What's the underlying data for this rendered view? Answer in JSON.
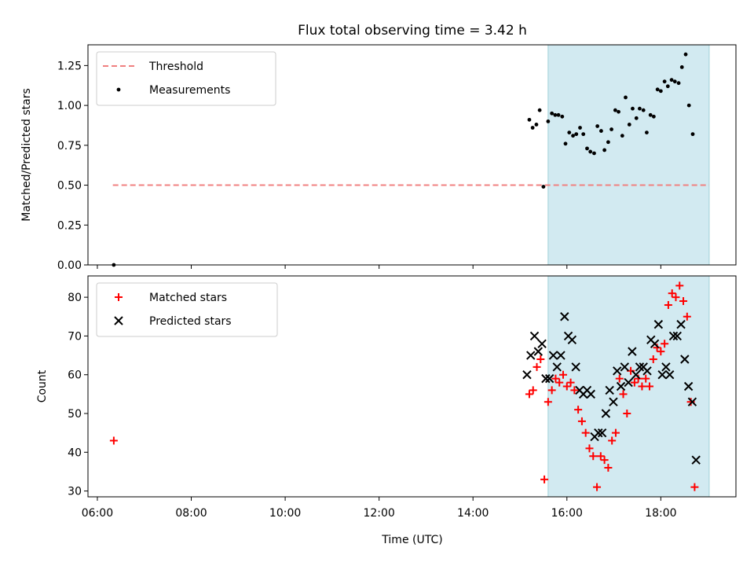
{
  "title": "Flux total observing time = 3.42 h",
  "xlabel": "Time (UTC)",
  "x_ticks": [
    "06:00",
    "08:00",
    "10:00",
    "12:00",
    "14:00",
    "16:00",
    "18:00"
  ],
  "x_range_hours": [
    5.8,
    19.6
  ],
  "shaded_window_hours": [
    15.6,
    19.03
  ],
  "colors": {
    "threshold": "#f08080",
    "shade": "#add8e6",
    "matched": "#ff0000",
    "predicted": "#000000",
    "measure": "#000000"
  },
  "chart_data": [
    {
      "type": "scatter",
      "title": "Flux total observing time = 3.42 h",
      "ylabel": "Matched/Predicted stars",
      "ylim": [
        0,
        1.38
      ],
      "y_ticks": [
        "0.00",
        "0.25",
        "0.50",
        "0.75",
        "1.00",
        "1.25"
      ],
      "legend_placement": "top-left",
      "threshold": {
        "name": "Threshold",
        "value": 0.5,
        "x_range_hours": [
          6.33,
          19.03
        ]
      },
      "series": [
        {
          "name": "Measurements",
          "points": [
            [
              6.35,
              0.0
            ],
            [
              15.2,
              0.91
            ],
            [
              15.27,
              0.86
            ],
            [
              15.35,
              0.88
            ],
            [
              15.42,
              0.97
            ],
            [
              15.5,
              0.49
            ],
            [
              15.6,
              0.9
            ],
            [
              15.68,
              0.95
            ],
            [
              15.75,
              0.94
            ],
            [
              15.82,
              0.94
            ],
            [
              15.9,
              0.93
            ],
            [
              15.97,
              0.76
            ],
            [
              16.05,
              0.83
            ],
            [
              16.13,
              0.81
            ],
            [
              16.2,
              0.82
            ],
            [
              16.28,
              0.86
            ],
            [
              16.35,
              0.82
            ],
            [
              16.43,
              0.73
            ],
            [
              16.5,
              0.71
            ],
            [
              16.58,
              0.7
            ],
            [
              16.65,
              0.87
            ],
            [
              16.73,
              0.84
            ],
            [
              16.8,
              0.72
            ],
            [
              16.88,
              0.77
            ],
            [
              16.95,
              0.85
            ],
            [
              17.03,
              0.97
            ],
            [
              17.1,
              0.96
            ],
            [
              17.18,
              0.81
            ],
            [
              17.25,
              1.05
            ],
            [
              17.33,
              0.88
            ],
            [
              17.4,
              0.98
            ],
            [
              17.48,
              0.92
            ],
            [
              17.55,
              0.98
            ],
            [
              17.63,
              0.97
            ],
            [
              17.7,
              0.83
            ],
            [
              17.78,
              0.94
            ],
            [
              17.85,
              0.93
            ],
            [
              17.93,
              1.1
            ],
            [
              18.0,
              1.09
            ],
            [
              18.08,
              1.15
            ],
            [
              18.15,
              1.12
            ],
            [
              18.23,
              1.16
            ],
            [
              18.3,
              1.15
            ],
            [
              18.38,
              1.14
            ],
            [
              18.45,
              1.24
            ],
            [
              18.53,
              1.32
            ],
            [
              18.6,
              1.0
            ],
            [
              18.68,
              0.82
            ]
          ]
        }
      ]
    },
    {
      "type": "scatter",
      "ylabel": "Count",
      "ylim": [
        28.5,
        85.5
      ],
      "y_ticks": [
        "30",
        "40",
        "50",
        "60",
        "70",
        "80"
      ],
      "legend_placement": "top-left",
      "series": [
        {
          "name": "Matched stars",
          "points": [
            [
              6.35,
              43
            ],
            [
              15.2,
              55
            ],
            [
              15.28,
              56
            ],
            [
              15.36,
              62
            ],
            [
              15.44,
              64
            ],
            [
              15.52,
              33
            ],
            [
              15.6,
              53
            ],
            [
              15.68,
              56
            ],
            [
              15.76,
              59
            ],
            [
              15.84,
              58
            ],
            [
              15.92,
              60
            ],
            [
              16.0,
              57
            ],
            [
              16.08,
              58
            ],
            [
              16.16,
              56
            ],
            [
              16.24,
              51
            ],
            [
              16.32,
              48
            ],
            [
              16.4,
              45
            ],
            [
              16.48,
              41
            ],
            [
              16.56,
              39
            ],
            [
              16.64,
              31
            ],
            [
              16.72,
              39
            ],
            [
              16.8,
              38
            ],
            [
              16.88,
              36
            ],
            [
              16.96,
              43
            ],
            [
              17.04,
              45
            ],
            [
              17.12,
              59
            ],
            [
              17.2,
              55
            ],
            [
              17.28,
              50
            ],
            [
              17.36,
              61
            ],
            [
              17.44,
              58
            ],
            [
              17.52,
              59
            ],
            [
              17.6,
              57
            ],
            [
              17.68,
              59
            ],
            [
              17.76,
              57
            ],
            [
              17.84,
              64
            ],
            [
              17.92,
              67
            ],
            [
              18.0,
              66
            ],
            [
              18.08,
              68
            ],
            [
              18.16,
              78
            ],
            [
              18.24,
              81
            ],
            [
              18.32,
              80
            ],
            [
              18.4,
              83
            ],
            [
              18.48,
              79
            ],
            [
              18.56,
              75
            ],
            [
              18.64,
              53
            ],
            [
              18.72,
              31
            ]
          ]
        },
        {
          "name": "Predicted stars",
          "points": [
            [
              15.15,
              60
            ],
            [
              15.23,
              65
            ],
            [
              15.31,
              70
            ],
            [
              15.39,
              66
            ],
            [
              15.47,
              68
            ],
            [
              15.55,
              59
            ],
            [
              15.63,
              59
            ],
            [
              15.71,
              65
            ],
            [
              15.79,
              62
            ],
            [
              15.87,
              65
            ],
            [
              15.95,
              75
            ],
            [
              16.03,
              70
            ],
            [
              16.11,
              69
            ],
            [
              16.19,
              62
            ],
            [
              16.27,
              56
            ],
            [
              16.35,
              55
            ],
            [
              16.43,
              56
            ],
            [
              16.51,
              55
            ],
            [
              16.59,
              44
            ],
            [
              16.67,
              45
            ],
            [
              16.75,
              45
            ],
            [
              16.83,
              50
            ],
            [
              16.91,
              56
            ],
            [
              16.99,
              53
            ],
            [
              17.07,
              61
            ],
            [
              17.15,
              57
            ],
            [
              17.23,
              62
            ],
            [
              17.31,
              58
            ],
            [
              17.39,
              66
            ],
            [
              17.47,
              60
            ],
            [
              17.55,
              62
            ],
            [
              17.63,
              62
            ],
            [
              17.71,
              61
            ],
            [
              17.79,
              69
            ],
            [
              17.87,
              68
            ],
            [
              17.95,
              73
            ],
            [
              18.03,
              60
            ],
            [
              18.11,
              62
            ],
            [
              18.19,
              60
            ],
            [
              18.27,
              70
            ],
            [
              18.35,
              70
            ],
            [
              18.43,
              73
            ],
            [
              18.51,
              64
            ],
            [
              18.59,
              57
            ],
            [
              18.67,
              53
            ],
            [
              18.75,
              38
            ]
          ]
        }
      ]
    }
  ]
}
